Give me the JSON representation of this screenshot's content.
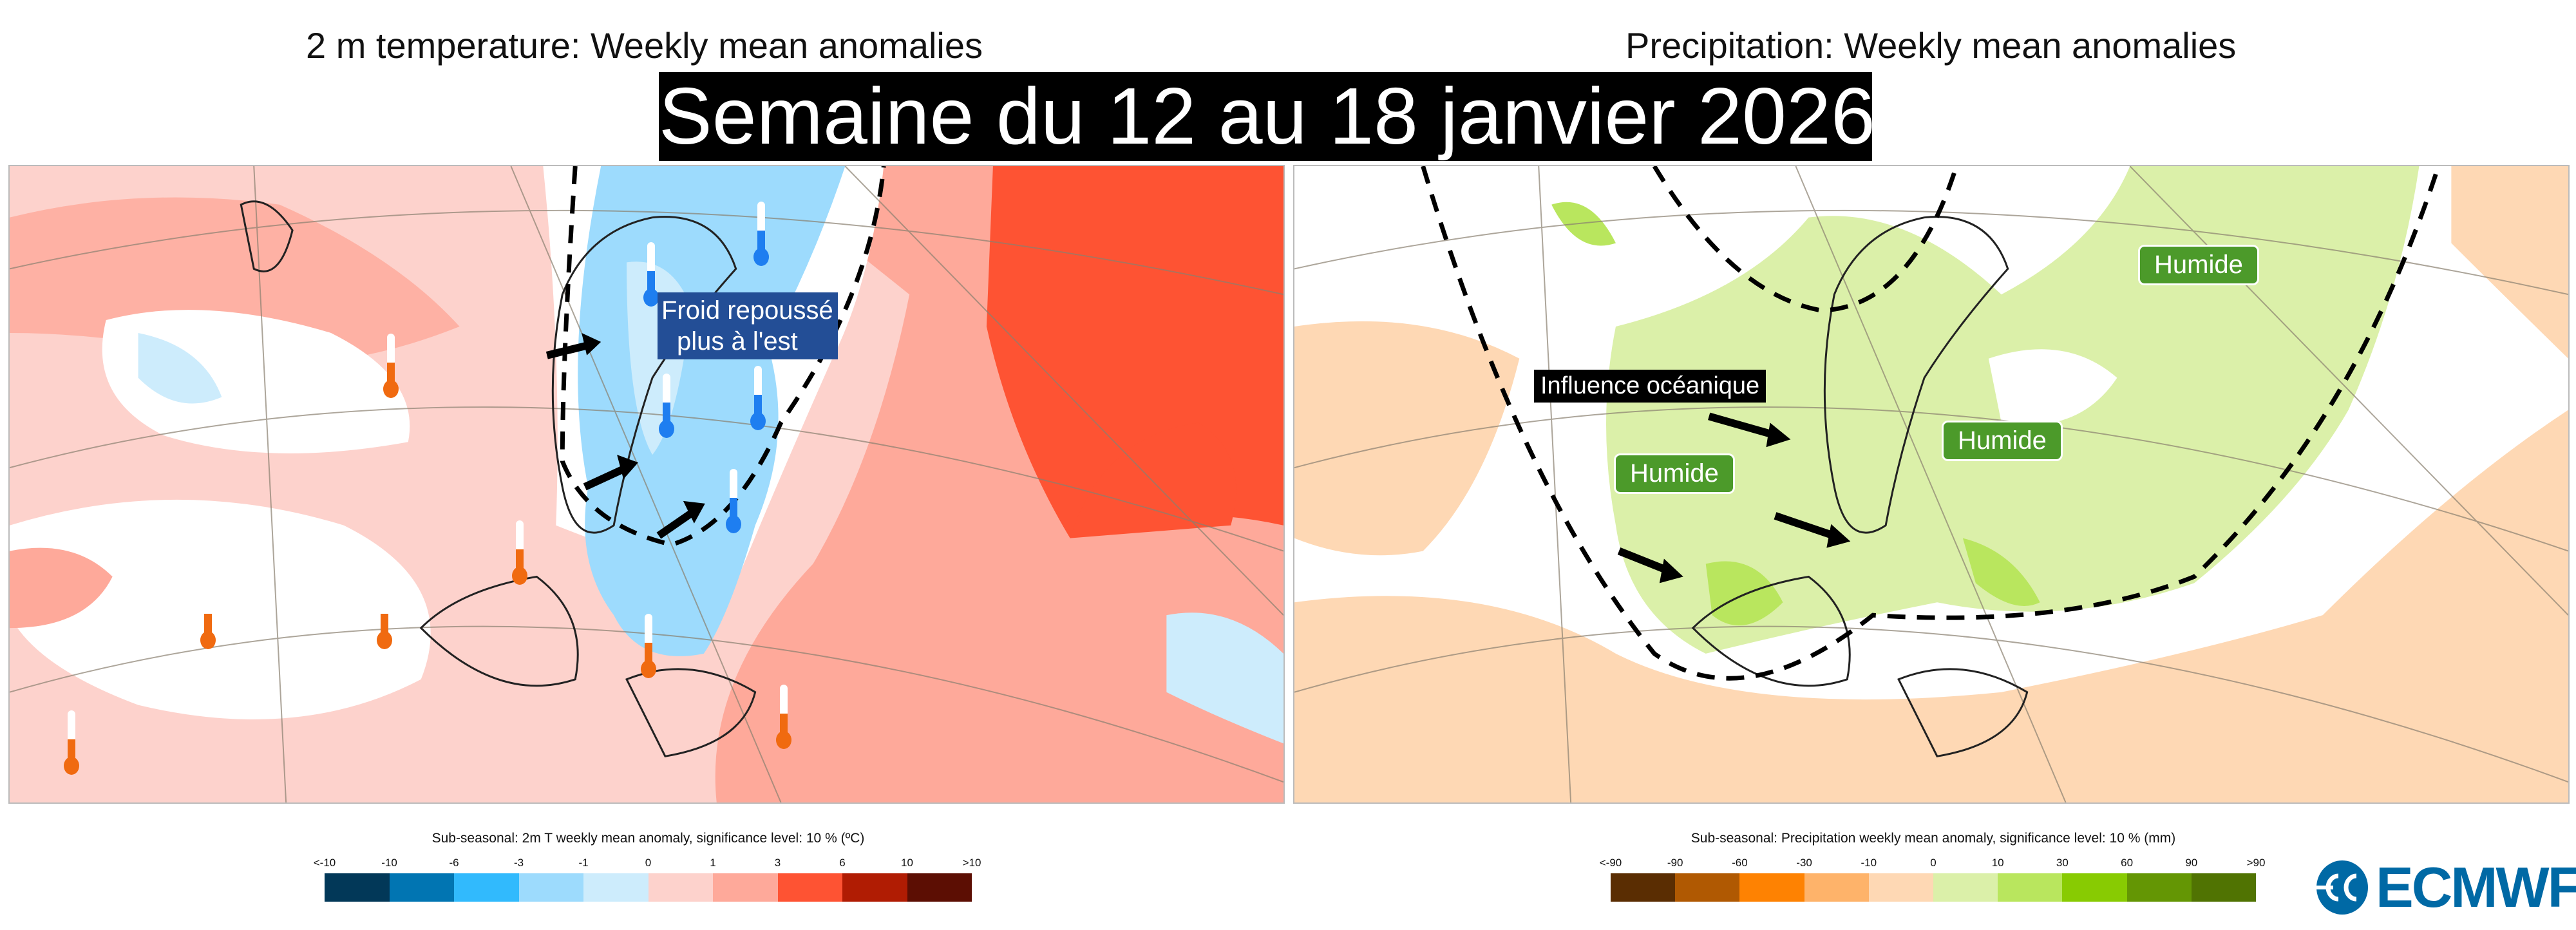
{
  "titles": {
    "left": "2 m temperature: Weekly mean anomalies",
    "right": "Precipitation: Weekly mean anomalies",
    "banner": "Semaine du 12 au 18 janvier 2026"
  },
  "left_map": {
    "annotation_line1": "Froid repoussé",
    "annotation_line2": "plus à l'est",
    "annotation_color": "#234e96",
    "icons": [
      "thermometer-cold-icon",
      "thermometer-warm-icon",
      "arrow-icon"
    ]
  },
  "right_map": {
    "labels": [
      "Humide",
      "Humide",
      "Humide"
    ],
    "influence": "Influence océanique",
    "humide_color": "#4c9a2a"
  },
  "colorbar_left": {
    "title": "Sub-seasonal: 2m T weekly mean anomaly, significance level: 10 % (ºC)",
    "ticks": [
      "<-10",
      "-10",
      "-6",
      "-3",
      "-1",
      "0",
      "1",
      "3",
      "6",
      "10",
      ">10"
    ],
    "colors": [
      "#023858",
      "#0175b2",
      "#31bafd",
      "#9ddbfd",
      "#cdecfc",
      "#fdd2cc",
      "#fea99a",
      "#fe5333",
      "#b01c03",
      "#5c0e03"
    ]
  },
  "colorbar_right": {
    "title": "Sub-seasonal: Precipitation weekly mean anomaly, significance level: 10 % (mm)",
    "ticks": [
      "<-90",
      "-90",
      "-60",
      "-30",
      "-10",
      "0",
      "10",
      "30",
      "60",
      "90",
      ">90"
    ],
    "colors": [
      "#5a2d02",
      "#b05902",
      "#fe8202",
      "#feb36a",
      "#fed8b4",
      "#dbf0a9",
      "#b9e65e",
      "#88cb02",
      "#649604",
      "#507302"
    ]
  },
  "logo": {
    "text": "ECMWF",
    "color": "#0069a5"
  }
}
